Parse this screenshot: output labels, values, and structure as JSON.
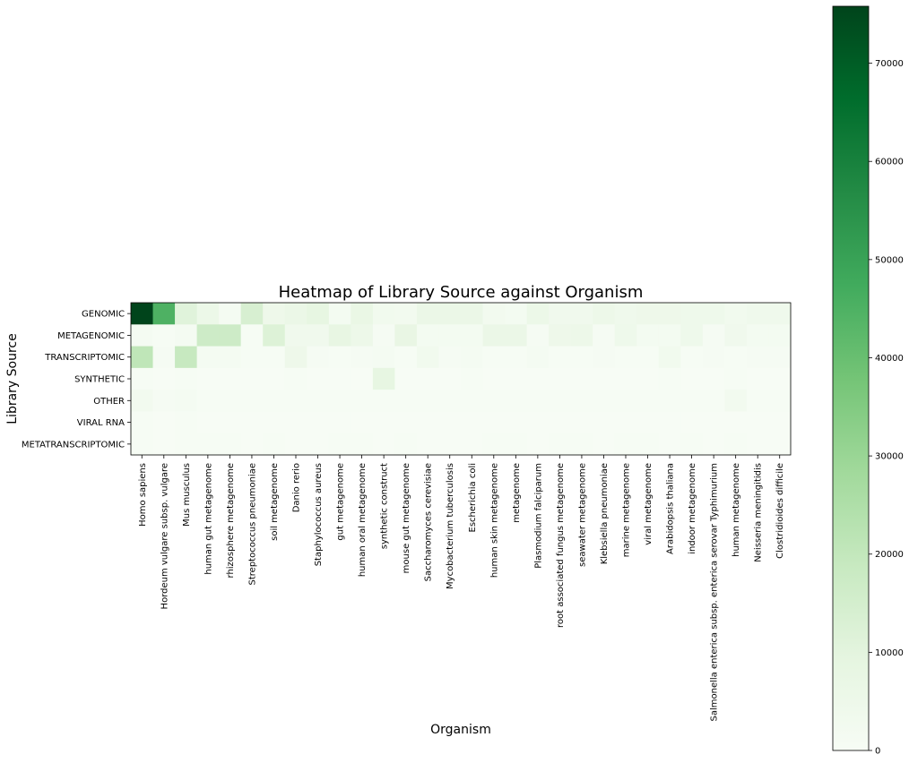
{
  "chart_data": {
    "type": "heatmap",
    "title": "Heatmap of Library Source against Organism",
    "xlabel": "Organism",
    "ylabel": "Library Source",
    "rows": [
      "GENOMIC",
      "METAGENOMIC",
      "TRANSCRIPTOMIC",
      "SYNTHETIC",
      "OTHER",
      "VIRAL RNA",
      "METATRANSCRIPTOMIC"
    ],
    "columns": [
      "Homo sapiens",
      "Hordeum vulgare subsp. vulgare",
      "Mus musculus",
      "human gut metagenome",
      "rhizosphere metagenome",
      "Streptococcus pneumoniae",
      "soil metagenome",
      "Danio rerio",
      "Staphylococcus aureus",
      "gut metagenome",
      "human oral metagenome",
      "synthetic construct",
      "mouse gut metagenome",
      "Saccharomyces cerevisiae",
      "Mycobacterium tuberculosis",
      "Escherichia coli",
      "human skin metagenome",
      "metagenome",
      "Plasmodium falciparum",
      "root associated fungus metagenome",
      "seawater metagenome",
      "Klebsiella pneumoniae",
      "marine metagenome",
      "viral metagenome",
      "Arabidopsis thaliana",
      "indoor metagenome",
      "Salmonella enterica subsp. enterica serovar Typhimurium",
      "human metagenome",
      "Neisseria meningitidis",
      "Clostridioides difficile"
    ],
    "values": [
      [
        75800,
        45000,
        11000,
        6000,
        1500,
        14000,
        5000,
        6500,
        8500,
        2000,
        7000,
        3000,
        2500,
        6500,
        6500,
        6500,
        2500,
        2000,
        6000,
        3500,
        3500,
        5500,
        4000,
        5000,
        5000,
        4500,
        4500,
        3000,
        4000,
        4000
      ],
      [
        1500,
        500,
        1500,
        17000,
        17000,
        500,
        12000,
        3500,
        3500,
        8000,
        5500,
        1000,
        7500,
        2000,
        2000,
        2000,
        6500,
        6500,
        1000,
        5000,
        5500,
        1000,
        4500,
        2000,
        2000,
        4500,
        1000,
        3500,
        2000,
        2000
      ],
      [
        21000,
        1000,
        19000,
        1500,
        1500,
        500,
        500,
        5000,
        1000,
        500,
        1000,
        1500,
        500,
        3000,
        1000,
        1500,
        500,
        500,
        1500,
        500,
        500,
        1000,
        500,
        500,
        3000,
        500,
        1000,
        500,
        1000,
        1000
      ],
      [
        500,
        0,
        500,
        0,
        0,
        0,
        0,
        500,
        0,
        0,
        0,
        8500,
        0,
        0,
        0,
        500,
        0,
        0,
        0,
        0,
        0,
        0,
        0,
        0,
        500,
        0,
        0,
        500,
        0,
        0
      ],
      [
        2500,
        1000,
        1500,
        500,
        500,
        500,
        500,
        500,
        500,
        500,
        500,
        500,
        500,
        500,
        500,
        500,
        500,
        500,
        500,
        500,
        500,
        500,
        500,
        500,
        500,
        500,
        500,
        2500,
        500,
        500
      ],
      [
        500,
        0,
        500,
        0,
        0,
        0,
        0,
        0,
        0,
        0,
        0,
        0,
        0,
        0,
        0,
        0,
        0,
        0,
        0,
        0,
        0,
        0,
        0,
        0,
        0,
        0,
        0,
        0,
        0,
        0
      ],
      [
        500,
        0,
        500,
        500,
        500,
        0,
        500,
        0,
        0,
        500,
        500,
        0,
        500,
        0,
        0,
        0,
        500,
        500,
        0,
        500,
        500,
        0,
        500,
        500,
        0,
        500,
        0,
        500,
        0,
        0
      ]
    ],
    "colorbar": {
      "range": [
        0,
        75800
      ],
      "ticks": [
        0,
        10000,
        20000,
        30000,
        40000,
        50000,
        60000,
        70000
      ],
      "tick_labels": [
        "0",
        "10000",
        "20000",
        "30000",
        "40000",
        "50000",
        "60000",
        "70000"
      ],
      "colormap": "Greens"
    },
    "colors": [
      "#f7fcf5",
      "#e5f5e0",
      "#c7e9c0",
      "#a1d99b",
      "#74c476",
      "#41ab5d",
      "#238b45",
      "#006d2c",
      "#00441b"
    ]
  }
}
